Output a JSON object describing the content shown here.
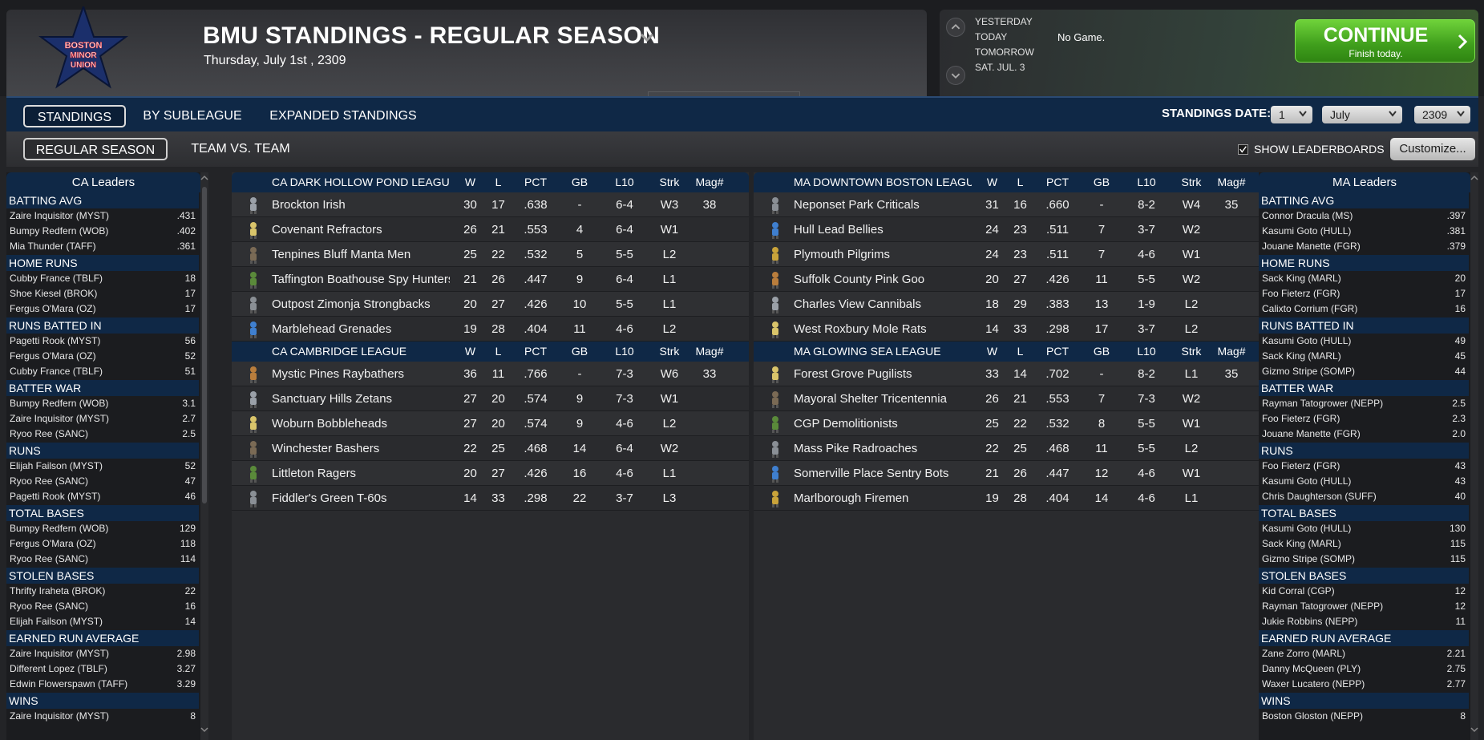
{
  "header": {
    "title": "BMU STANDINGS - REGULAR SEASON",
    "date": "Thursday, July 1st , 2309",
    "logo_text": [
      "BOSTON",
      "MINOR",
      "UNION"
    ]
  },
  "schedule": {
    "days": [
      "YESTERDAY",
      "TODAY",
      "TOMORROW",
      "SAT. JUL. 3"
    ],
    "today_status": "No Game.",
    "continue_label": "CONTINUE",
    "continue_sub": "Finish today."
  },
  "tabs": {
    "main": [
      "STANDINGS",
      "BY SUBLEAGUE",
      "EXPANDED STANDINGS"
    ],
    "sub": [
      "REGULAR SEASON",
      "TEAM VS. TEAM"
    ],
    "standings_date_label": "STANDINGS DATE:",
    "date_day": "1",
    "date_month": "July",
    "date_year": "2309",
    "show_leaderboards": "SHOW LEADERBOARDS",
    "customize": "Customize..."
  },
  "columns": [
    "W",
    "L",
    "PCT",
    "GB",
    "L10",
    "Strk",
    "Mag#"
  ],
  "divisions": {
    "ca_dark": {
      "name": "CA DARK HOLLOW POND LEAGUE",
      "teams": [
        {
          "name": "Brockton Irish",
          "w": "30",
          "l": "17",
          "pct": ".638",
          "gb": "-",
          "l10": "6-4",
          "strk": "W3",
          "mag": "38"
        },
        {
          "name": "Covenant Refractors",
          "w": "26",
          "l": "21",
          "pct": ".553",
          "gb": "4",
          "l10": "6-4",
          "strk": "W1",
          "mag": ""
        },
        {
          "name": "Tenpines Bluff Manta Men",
          "w": "25",
          "l": "22",
          "pct": ".532",
          "gb": "5",
          "l10": "5-5",
          "strk": "L2",
          "mag": ""
        },
        {
          "name": "Taffington Boathouse Spy Hunters",
          "w": "21",
          "l": "26",
          "pct": ".447",
          "gb": "9",
          "l10": "6-4",
          "strk": "L1",
          "mag": ""
        },
        {
          "name": "Outpost Zimonja Strongbacks",
          "w": "20",
          "l": "27",
          "pct": ".426",
          "gb": "10",
          "l10": "5-5",
          "strk": "L1",
          "mag": ""
        },
        {
          "name": "Marblehead Grenades",
          "w": "19",
          "l": "28",
          "pct": ".404",
          "gb": "11",
          "l10": "4-6",
          "strk": "L2",
          "mag": ""
        }
      ]
    },
    "ca_cambridge": {
      "name": "CA CAMBRIDGE LEAGUE",
      "teams": [
        {
          "name": "Mystic Pines Raybathers",
          "w": "36",
          "l": "11",
          "pct": ".766",
          "gb": "-",
          "l10": "7-3",
          "strk": "W6",
          "mag": "33"
        },
        {
          "name": "Sanctuary Hills Zetans",
          "w": "27",
          "l": "20",
          "pct": ".574",
          "gb": "9",
          "l10": "7-3",
          "strk": "W1",
          "mag": ""
        },
        {
          "name": "Woburn Bobbleheads",
          "w": "27",
          "l": "20",
          "pct": ".574",
          "gb": "9",
          "l10": "4-6",
          "strk": "L2",
          "mag": ""
        },
        {
          "name": "Winchester Bashers",
          "w": "22",
          "l": "25",
          "pct": ".468",
          "gb": "14",
          "l10": "6-4",
          "strk": "W2",
          "mag": ""
        },
        {
          "name": "Littleton Ragers",
          "w": "20",
          "l": "27",
          "pct": ".426",
          "gb": "16",
          "l10": "4-6",
          "strk": "L1",
          "mag": ""
        },
        {
          "name": "Fiddler's Green T-60s",
          "w": "14",
          "l": "33",
          "pct": ".298",
          "gb": "22",
          "l10": "3-7",
          "strk": "L3",
          "mag": ""
        }
      ]
    },
    "ma_downtown": {
      "name": "MA DOWNTOWN BOSTON LEAGUE",
      "teams": [
        {
          "name": "Neponset Park Criticals",
          "w": "31",
          "l": "16",
          "pct": ".660",
          "gb": "-",
          "l10": "8-2",
          "strk": "W4",
          "mag": "35"
        },
        {
          "name": "Hull Lead Bellies",
          "w": "24",
          "l": "23",
          "pct": ".511",
          "gb": "7",
          "l10": "3-7",
          "strk": "W2",
          "mag": ""
        },
        {
          "name": "Plymouth Pilgrims",
          "w": "24",
          "l": "23",
          "pct": ".511",
          "gb": "7",
          "l10": "4-6",
          "strk": "W1",
          "mag": ""
        },
        {
          "name": "Suffolk County Pink Goo",
          "w": "20",
          "l": "27",
          "pct": ".426",
          "gb": "11",
          "l10": "5-5",
          "strk": "W2",
          "mag": ""
        },
        {
          "name": "Charles View Cannibals",
          "w": "18",
          "l": "29",
          "pct": ".383",
          "gb": "13",
          "l10": "1-9",
          "strk": "L2",
          "mag": ""
        },
        {
          "name": "West Roxbury Mole Rats",
          "w": "14",
          "l": "33",
          "pct": ".298",
          "gb": "17",
          "l10": "3-7",
          "strk": "L2",
          "mag": ""
        }
      ]
    },
    "ma_glowing": {
      "name": "MA GLOWING SEA LEAGUE",
      "teams": [
        {
          "name": "Forest Grove Pugilists",
          "w": "33",
          "l": "14",
          "pct": ".702",
          "gb": "-",
          "l10": "8-2",
          "strk": "L1",
          "mag": "35"
        },
        {
          "name": "Mayoral Shelter Tricentennia",
          "w": "26",
          "l": "21",
          "pct": ".553",
          "gb": "7",
          "l10": "7-3",
          "strk": "W2",
          "mag": ""
        },
        {
          "name": "CGP Demolitionists",
          "w": "25",
          "l": "22",
          "pct": ".532",
          "gb": "8",
          "l10": "5-5",
          "strk": "W1",
          "mag": ""
        },
        {
          "name": "Mass Pike Radroaches",
          "w": "22",
          "l": "25",
          "pct": ".468",
          "gb": "11",
          "l10": "5-5",
          "strk": "L2",
          "mag": ""
        },
        {
          "name": "Somerville Place Sentry Bots",
          "w": "21",
          "l": "26",
          "pct": ".447",
          "gb": "12",
          "l10": "4-6",
          "strk": "W1",
          "mag": ""
        },
        {
          "name": "Marlborough Firemen",
          "w": "19",
          "l": "28",
          "pct": ".404",
          "gb": "14",
          "l10": "4-6",
          "strk": "L1",
          "mag": ""
        }
      ]
    }
  },
  "leaders": {
    "ca": {
      "title": "CA Leaders",
      "categories": [
        {
          "name": "BATTING AVG",
          "rows": [
            [
              "Zaire Inquisitor (MYST)",
              ".431"
            ],
            [
              "Bumpy Redfern (WOB)",
              ".402"
            ],
            [
              "Mia Thunder (TAFF)",
              ".361"
            ]
          ]
        },
        {
          "name": "HOME RUNS",
          "rows": [
            [
              "Cubby France (TBLF)",
              "18"
            ],
            [
              "Shoe Kiesel (BROK)",
              "17"
            ],
            [
              "Fergus O'Mara (OZ)",
              "17"
            ]
          ]
        },
        {
          "name": "RUNS BATTED IN",
          "rows": [
            [
              "Pagetti Rook (MYST)",
              "56"
            ],
            [
              "Fergus O'Mara (OZ)",
              "52"
            ],
            [
              "Cubby France (TBLF)",
              "51"
            ]
          ]
        },
        {
          "name": "BATTER WAR",
          "rows": [
            [
              "Bumpy Redfern (WOB)",
              "3.1"
            ],
            [
              "Zaire Inquisitor (MYST)",
              "2.7"
            ],
            [
              "Ryoo Ree (SANC)",
              "2.5"
            ]
          ]
        },
        {
          "name": "RUNS",
          "rows": [
            [
              "Elijah Failson (MYST)",
              "52"
            ],
            [
              "Ryoo Ree (SANC)",
              "47"
            ],
            [
              "Pagetti Rook (MYST)",
              "46"
            ]
          ]
        },
        {
          "name": "TOTAL BASES",
          "rows": [
            [
              "Bumpy Redfern (WOB)",
              "129"
            ],
            [
              "Fergus O'Mara (OZ)",
              "118"
            ],
            [
              "Ryoo Ree (SANC)",
              "114"
            ]
          ]
        },
        {
          "name": "STOLEN BASES",
          "rows": [
            [
              "Thrifty Iraheta (BROK)",
              "22"
            ],
            [
              "Ryoo Ree (SANC)",
              "16"
            ],
            [
              "Elijah Failson (MYST)",
              "14"
            ]
          ]
        },
        {
          "name": "EARNED RUN AVERAGE",
          "rows": [
            [
              "Zaire Inquisitor (MYST)",
              "2.98"
            ],
            [
              "Different Lopez (TBLF)",
              "3.27"
            ],
            [
              "Edwin Flowerspawn (TAFF)",
              "3.29"
            ]
          ]
        },
        {
          "name": "WINS",
          "rows": [
            [
              "Zaire Inquisitor (MYST)",
              "8"
            ]
          ]
        }
      ]
    },
    "ma": {
      "title": "MA Leaders",
      "categories": [
        {
          "name": "BATTING AVG",
          "rows": [
            [
              "Connor Dracula (MS)",
              ".397"
            ],
            [
              "Kasumi Goto (HULL)",
              ".381"
            ],
            [
              "Jouane Manette (FGR)",
              ".379"
            ]
          ]
        },
        {
          "name": "HOME RUNS",
          "rows": [
            [
              "Sack King (MARL)",
              "20"
            ],
            [
              "Foo Fieterz (FGR)",
              "17"
            ],
            [
              "Calixto Corrium (FGR)",
              "16"
            ]
          ]
        },
        {
          "name": "RUNS BATTED IN",
          "rows": [
            [
              "Kasumi Goto (HULL)",
              "49"
            ],
            [
              "Sack King (MARL)",
              "45"
            ],
            [
              "Gizmo Stripe (SOMP)",
              "44"
            ]
          ]
        },
        {
          "name": "BATTER WAR",
          "rows": [
            [
              "Rayman Tatogrower (NEPP)",
              "2.5"
            ],
            [
              "Foo Fieterz (FGR)",
              "2.3"
            ],
            [
              "Jouane Manette (FGR)",
              "2.0"
            ]
          ]
        },
        {
          "name": "RUNS",
          "rows": [
            [
              "Foo Fieterz (FGR)",
              "43"
            ],
            [
              "Kasumi Goto (HULL)",
              "43"
            ],
            [
              "Chris Daughterson (SUFF)",
              "40"
            ]
          ]
        },
        {
          "name": "TOTAL BASES",
          "rows": [
            [
              "Kasumi Goto (HULL)",
              "130"
            ],
            [
              "Sack King (MARL)",
              "115"
            ],
            [
              "Gizmo Stripe (SOMP)",
              "115"
            ]
          ]
        },
        {
          "name": "STOLEN BASES",
          "rows": [
            [
              "Kid Corral (CGP)",
              "12"
            ],
            [
              "Rayman Tatogrower (NEPP)",
              "12"
            ],
            [
              "Jukie Robbins (NEPP)",
              "11"
            ]
          ]
        },
        {
          "name": "EARNED RUN AVERAGE",
          "rows": [
            [
              "Zane Zorro (MARL)",
              "2.21"
            ],
            [
              "Danny McQueen (PLY)",
              "2.75"
            ],
            [
              "Waxer Lucatero (NEPP)",
              "2.77"
            ]
          ]
        },
        {
          "name": "WINS",
          "rows": [
            [
              "Boston Gloston (NEPP)",
              "8"
            ]
          ]
        }
      ]
    }
  }
}
